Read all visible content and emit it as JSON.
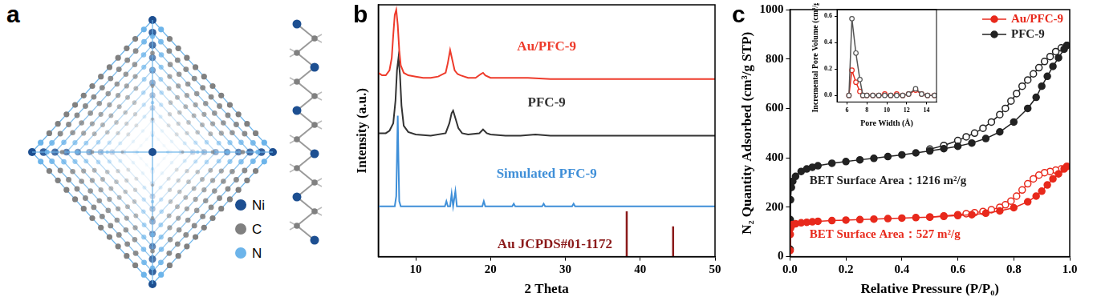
{
  "structure": {
    "panel_label": "a",
    "legend": [
      {
        "name": "Ni",
        "color": "#1d4f91"
      },
      {
        "name": "C",
        "color": "#808080"
      },
      {
        "name": "N",
        "color": "#6cb4ea"
      }
    ]
  },
  "chart_data": [
    {
      "panel_label": "b",
      "type": "line",
      "x_label": "2 Theta",
      "y_label": "Intensity (a.u.)",
      "xlim": [
        5,
        50
      ],
      "xticks": [
        10,
        20,
        30,
        40,
        50
      ],
      "ylim": [
        0,
        100
      ],
      "tick_labels": "x",
      "grid": false,
      "series": [
        {
          "name": "Au/PFC-9",
          "color": "#ee3b2b",
          "x": [
            5,
            5.5,
            6,
            6.5,
            6.8,
            7.0,
            7.2,
            7.4,
            7.6,
            7.8,
            8.0,
            8.4,
            9,
            10,
            11,
            12,
            13,
            14,
            14.3,
            14.6,
            14.9,
            15.2,
            15.6,
            16,
            17,
            18,
            18.7,
            19,
            19.3,
            20,
            22,
            25,
            28,
            30,
            35,
            40,
            45,
            50
          ],
          "values": [
            73,
            72,
            72,
            74,
            79,
            88,
            96,
            98,
            92,
            82,
            76,
            73,
            72,
            71.5,
            71,
            71,
            71.5,
            73,
            77,
            82,
            78,
            74,
            72.5,
            72,
            71,
            71,
            72.5,
            73,
            72,
            71,
            71,
            71,
            70.5,
            70.5,
            70.5,
            70.5,
            70.5,
            70.5
          ]
        },
        {
          "name": "PFC-9",
          "color": "#333333",
          "x": [
            5,
            6,
            6.5,
            7.0,
            7.3,
            7.5,
            7.7,
            7.9,
            8.1,
            8.4,
            9,
            10,
            12,
            14,
            14.5,
            14.8,
            15.0,
            15.3,
            15.7,
            16.2,
            17,
            18.5,
            19,
            19.5,
            20,
            22,
            24,
            26,
            28,
            30,
            35,
            40,
            45,
            50
          ],
          "values": [
            49,
            49,
            50,
            53,
            62,
            74,
            79,
            72,
            60,
            52,
            49.5,
            48.5,
            48,
            49,
            53,
            57,
            58,
            55,
            51,
            49,
            48.5,
            49,
            50.5,
            49,
            48.5,
            48,
            48,
            48.5,
            48,
            48,
            48,
            48,
            48,
            48
          ]
        },
        {
          "name": "Simulated PFC-9",
          "color": "#3f8fd8",
          "x": [
            5,
            7.2,
            7.4,
            7.5,
            7.6,
            7.7,
            7.8,
            8.0,
            10,
            13,
            13.9,
            14.1,
            14.3,
            14.6,
            14.8,
            15.0,
            15.3,
            15.5,
            17,
            18.9,
            19.1,
            19.3,
            21,
            22.9,
            23.1,
            23.3,
            25,
            26.9,
            27.1,
            27.3,
            30,
            30.9,
            31.1,
            31.3,
            35,
            40,
            45,
            50
          ],
          "values": [
            20,
            20,
            24,
            40,
            56,
            38,
            22,
            20,
            20,
            20,
            20,
            22,
            20,
            20,
            25,
            20,
            26,
            20,
            20,
            20,
            22,
            20,
            20,
            20,
            21,
            20,
            20,
            20,
            21,
            20,
            20,
            20,
            21,
            20,
            20,
            20,
            20,
            20
          ]
        },
        {
          "name": "Au JCPDS#01-1172",
          "type": "bar",
          "color": "#8b1a1a",
          "x": [
            38.2,
            44.4
          ],
          "values": [
            18,
            12
          ]
        }
      ]
    },
    {
      "panel_label": "c",
      "type": "line",
      "x_label": "Relative Pressure (P/P₀)",
      "y_label": "N₂ Quantity Adsorbed (cm³/g STP)",
      "xlim": [
        0,
        1
      ],
      "xticks": [
        {
          "value": 0,
          "label": "0.0"
        },
        {
          "value": 0.2,
          "label": "0.2"
        },
        {
          "value": 0.4,
          "label": "0.4"
        },
        {
          "value": 0.6,
          "label": "0.6"
        },
        {
          "value": 0.8,
          "label": "0.8"
        },
        {
          "value": 1,
          "label": "1.0"
        }
      ],
      "ylim": [
        0,
        1000
      ],
      "yticks": [
        0,
        200,
        400,
        600,
        800,
        1000
      ],
      "grid": false,
      "legend": "upper right",
      "annotations": [
        {
          "text": "BET Surface Area：1216 m²/g",
          "color": "#222222"
        },
        {
          "text": "BET Surface Area：527 m²/g",
          "color": "#e8291c"
        }
      ],
      "series": [
        {
          "name": "Au/PFC-9",
          "color": "#e8291c",
          "marker": "filled circle",
          "x": [
            0.0005,
            0.001,
            0.002,
            0.005,
            0.01,
            0.02,
            0.04,
            0.06,
            0.08,
            0.1,
            0.15,
            0.2,
            0.25,
            0.3,
            0.35,
            0.4,
            0.45,
            0.5,
            0.55,
            0.6,
            0.65,
            0.7,
            0.75,
            0.8,
            0.85,
            0.88,
            0.9,
            0.92,
            0.94,
            0.96,
            0.98,
            0.99
          ],
          "values": [
            25,
            90,
            115,
            125,
            130,
            133,
            137,
            139,
            141,
            143,
            146,
            148,
            150,
            152,
            154,
            156,
            158,
            160,
            163,
            166,
            170,
            176,
            185,
            198,
            222,
            245,
            265,
            290,
            315,
            335,
            355,
            365
          ],
          "desorption": {
            "marker": "open circle",
            "x": [
              0.99,
              0.97,
              0.95,
              0.93,
              0.91,
              0.89,
              0.87,
              0.85,
              0.83,
              0.81,
              0.79,
              0.77,
              0.75,
              0.72,
              0.69,
              0.66,
              0.63,
              0.6,
              0.55,
              0.5
            ],
            "values": [
              365,
              355,
              350,
              345,
              340,
              330,
              315,
              295,
              270,
              245,
              225,
              210,
              200,
              190,
              183,
              178,
              174,
              170,
              165,
              160
            ]
          }
        },
        {
          "name": "PFC-9",
          "color": "#222222",
          "marker": "filled circle",
          "x": [
            0.0005,
            0.001,
            0.002,
            0.005,
            0.01,
            0.02,
            0.04,
            0.06,
            0.08,
            0.1,
            0.15,
            0.2,
            0.25,
            0.3,
            0.35,
            0.4,
            0.45,
            0.5,
            0.55,
            0.6,
            0.65,
            0.7,
            0.75,
            0.8,
            0.85,
            0.88,
            0.9,
            0.92,
            0.94,
            0.96,
            0.98,
            0.99
          ],
          "values": [
            30,
            150,
            230,
            280,
            305,
            325,
            345,
            355,
            362,
            368,
            378,
            385,
            392,
            398,
            405,
            412,
            420,
            428,
            437,
            447,
            460,
            478,
            505,
            545,
            600,
            645,
            690,
            730,
            770,
            805,
            840,
            855
          ],
          "desorption": {
            "marker": "open circle",
            "x": [
              0.99,
              0.97,
              0.95,
              0.93,
              0.91,
              0.89,
              0.87,
              0.85,
              0.83,
              0.81,
              0.79,
              0.77,
              0.75,
              0.72,
              0.69,
              0.66,
              0.63,
              0.6,
              0.55,
              0.5
            ],
            "values": [
              855,
              845,
              830,
              810,
              790,
              765,
              740,
              715,
              690,
              660,
              630,
              600,
              575,
              545,
              520,
              500,
              485,
              470,
              450,
              435
            ]
          }
        }
      ]
    },
    {
      "type": "line",
      "x_label": "Pore Width (Å)",
      "y_label": "Incremental Pore Volume (cm³/g)",
      "xlim": [
        5,
        15
      ],
      "xticks": [
        6,
        8,
        10,
        12,
        14
      ],
      "ylim": [
        -0.05,
        0.65
      ],
      "yticks": [
        {
          "value": 0,
          "label": "0.0"
        },
        {
          "value": 0.2,
          "label": "0.2"
        },
        {
          "value": 0.4,
          "label": "0.4"
        },
        {
          "value": 0.6,
          "label": "0.6"
        }
      ],
      "grid": false,
      "series": [
        {
          "color": "#555555",
          "marker": "open circle",
          "x": [
            6.2,
            6.5,
            6.9,
            7.3,
            7.6,
            8.0,
            8.6,
            9.2,
            9.8,
            10.4,
            11.0,
            11.6,
            12.2,
            12.9,
            13.5,
            14.1,
            14.8
          ],
          "values": [
            0,
            0.58,
            0.32,
            0.12,
            0,
            0,
            0,
            0,
            0,
            0,
            0,
            0,
            0.01,
            0.05,
            0.01,
            0,
            0
          ]
        },
        {
          "color": "#e8291c",
          "marker": "open circle",
          "x": [
            6.2,
            6.5,
            6.9,
            7.3,
            7.6,
            8.0,
            8.6,
            9.2,
            9.8,
            10.4,
            11.0,
            11.6,
            12.2,
            12.9,
            13.5,
            14.1,
            14.8
          ],
          "values": [
            0,
            0.19,
            0.1,
            0.03,
            0,
            0,
            0,
            0,
            0.01,
            0,
            0.01,
            0,
            0.01,
            0.04,
            0.01,
            0,
            0
          ]
        }
      ]
    }
  ]
}
